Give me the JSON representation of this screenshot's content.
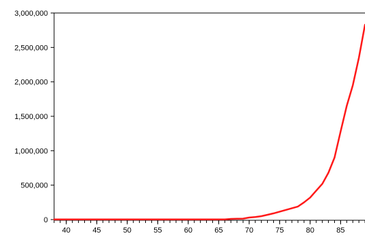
{
  "chart_data": {
    "type": "line",
    "title": "",
    "xlabel": "",
    "ylabel": "",
    "xlim": [
      38,
      89
    ],
    "ylim": [
      0,
      3000000
    ],
    "x_ticks": [
      40,
      45,
      50,
      55,
      60,
      65,
      70,
      75,
      80,
      85
    ],
    "x_tick_labels": [
      "40",
      "45",
      "50",
      "55",
      "60",
      "65",
      "70",
      "75",
      "80",
      "85"
    ],
    "y_ticks": [
      0,
      500000,
      1000000,
      1500000,
      2000000,
      2500000,
      3000000
    ],
    "y_tick_labels": [
      "0",
      "500,000",
      "1,000,000",
      "1,500,000",
      "2,000,000",
      "2,500,000",
      "3,000,000"
    ],
    "grid": false,
    "legend": "none",
    "series": [
      {
        "color": "#ff1a1a",
        "x": [
          38,
          39,
          40,
          41,
          42,
          43,
          44,
          45,
          46,
          47,
          48,
          49,
          50,
          51,
          52,
          53,
          54,
          55,
          56,
          57,
          58,
          59,
          60,
          61,
          62,
          63,
          64,
          65,
          66,
          67,
          68,
          69,
          70,
          71,
          72,
          73,
          74,
          75,
          76,
          77,
          78,
          79,
          80,
          81,
          82,
          83,
          84,
          85,
          86,
          87,
          88,
          89
        ],
        "y": [
          2000,
          2000,
          2000,
          2000,
          2000,
          2000,
          2000,
          2000,
          2000,
          2000,
          2000,
          2000,
          2000,
          2000,
          2000,
          2000,
          2000,
          2000,
          2000,
          2000,
          2000,
          2000,
          2000,
          2000,
          2000,
          2000,
          2000,
          2000,
          2000,
          10000,
          12000,
          14000,
          30000,
          38000,
          50000,
          70000,
          90000,
          115000,
          140000,
          165000,
          190000,
          250000,
          320000,
          420000,
          520000,
          680000,
          900000,
          1280000,
          1650000,
          1950000,
          2350000,
          2830000
        ]
      }
    ]
  }
}
